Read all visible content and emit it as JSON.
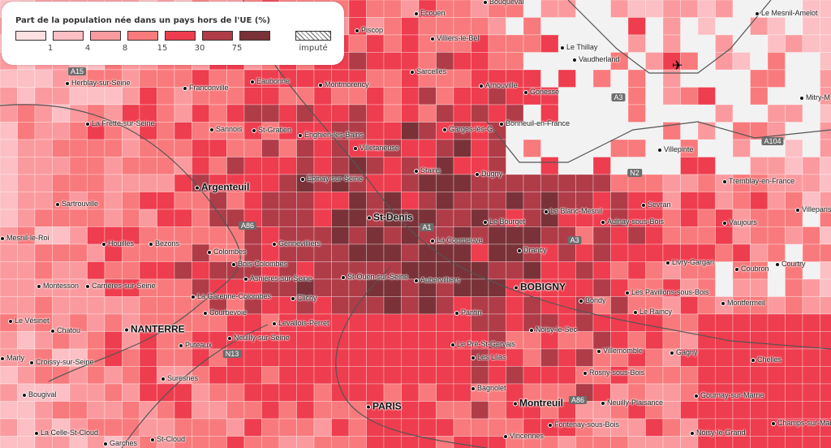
{
  "legend": {
    "title": "Part de la population née dans un pays hors de l'UE (%)",
    "ticks": [
      "1",
      "4",
      "8",
      "15",
      "30",
      "75"
    ],
    "imputed_label": "imputé",
    "colors": [
      "#fde0e0",
      "#fcbfc4",
      "#fb9a9e",
      "#f97a7c",
      "#ee3d4e",
      "#b03c48",
      "#7a3238"
    ]
  },
  "places": [
    "Piscop",
    "Ecouen",
    "Bouqueval",
    "Le Mesnil-Amelot",
    "Villiers-le-Bel",
    "Le Thillay",
    "Vaudherland",
    "Sarcelles",
    "Arnouville",
    "Gonesse",
    "Herblay-sur-Seine",
    "Franconville",
    "Eaubonne",
    "Montmorency",
    "Mitry-M",
    "La Frette-sur-Seine",
    "Sannois",
    "St-Gratien",
    "Enghien-les-Bains",
    "Garges-lès-G.",
    "Bonneuil-en-France",
    "Villetaneuse",
    "Villepinte",
    "Stains",
    "Dugny",
    "Épinay-sur-Seine",
    "Argenteuil",
    "Tremblay-en-France",
    "Sartrouville",
    "St-Denis",
    "Sevran",
    "Le Blanc-Mesnil",
    "Villeparisis",
    "Le Bourget",
    "Aulnay-sous-Bois",
    "Vaujours",
    "Mesnil-le-Roi",
    "Houilles",
    "Bezons",
    "Gennevilliers",
    "La Courneuve",
    "Drancy",
    "Colombes",
    "Bois-Colombes",
    "Livry-Gargan",
    "Coubron",
    "Courtry",
    "Montesson",
    "Carrières-sur-Seine",
    "Asnières-sur-Seine",
    "St-Ouen-sur-Seine",
    "Aubervilliers",
    "BOBIGNY",
    "Les Pavillons-sous-Bois",
    "La Garenne-Colombes",
    "Clichy",
    "Bondy",
    "Montfermeil",
    "Le Raincy",
    "Le Vésinet",
    "Chatou",
    "NANTERRE",
    "Courbevoie",
    "Levallois-Perret",
    "Pantin",
    "Neuilly-sur-Seine",
    "Noisy-le-Sec",
    "Puteaux",
    "Le Pré-St-Gervais",
    "Marly",
    "Croissy-sur-Seine",
    "Les Lilas",
    "Villemomble",
    "Gagny",
    "Chelles",
    "Suresnes",
    "Rosny-sous-Bois",
    "Bougival",
    "Bagnolet",
    "PARIS",
    "Montreuil",
    "Neuilly-Plaisance",
    "Gournay-sur-Marne",
    "Champs-sur-Marne",
    "La Celle-St-Cloud",
    "Garches",
    "St-Cloud",
    "Fontenay-sous-Bois",
    "Vincennes",
    "Noisy-le-Grand"
  ],
  "roads": [
    "A15",
    "A3",
    "A104",
    "N2",
    "A86",
    "A1",
    "A3",
    "N13",
    "A86"
  ],
  "icons": [
    "airport-icon"
  ]
}
